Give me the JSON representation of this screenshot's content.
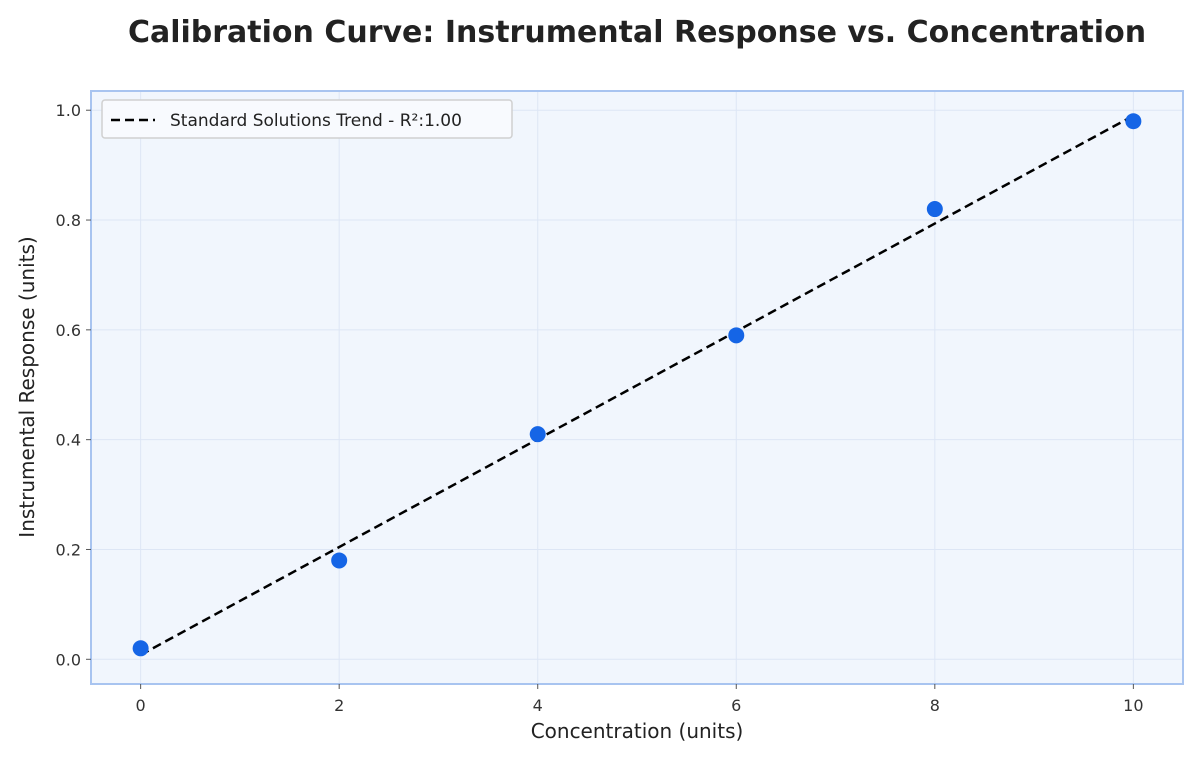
{
  "chart_data": {
    "type": "scatter",
    "title": "Calibration Curve: Instrumental Response vs. Concentration",
    "xlabel": "Concentration (units)",
    "ylabel": "Instrumental Response (units)",
    "xlim": [
      -0.5,
      10.5
    ],
    "ylim": [
      -0.045,
      1.035
    ],
    "xticks": [
      0,
      2,
      4,
      6,
      8,
      10
    ],
    "xtick_labels": [
      "0",
      "2",
      "4",
      "6",
      "8",
      "10"
    ],
    "yticks": [
      0.0,
      0.2,
      0.4,
      0.6,
      0.8,
      1.0
    ],
    "ytick_labels": [
      "0.0",
      "0.2",
      "0.4",
      "0.6",
      "0.8",
      "1.0"
    ],
    "grid": true,
    "legend_position": "top-left",
    "series": [
      {
        "kind": "scatter",
        "x": [
          0,
          2,
          4,
          6,
          8,
          10
        ],
        "y": [
          0.02,
          0.18,
          0.41,
          0.59,
          0.82,
          0.98
        ],
        "color": "#1565e6"
      },
      {
        "kind": "line",
        "name": "Standard Solutions Trend - R²:1.00",
        "style": "dashed",
        "x": [
          0,
          10
        ],
        "y": [
          0.008,
          0.99
        ],
        "color": "#000000"
      }
    ],
    "colors": {
      "plot_background": "#f1f6fd",
      "frame": "#a8c4f0",
      "grid": "#dde6f5",
      "points": "#1565e6",
      "trend": "#000000"
    }
  }
}
